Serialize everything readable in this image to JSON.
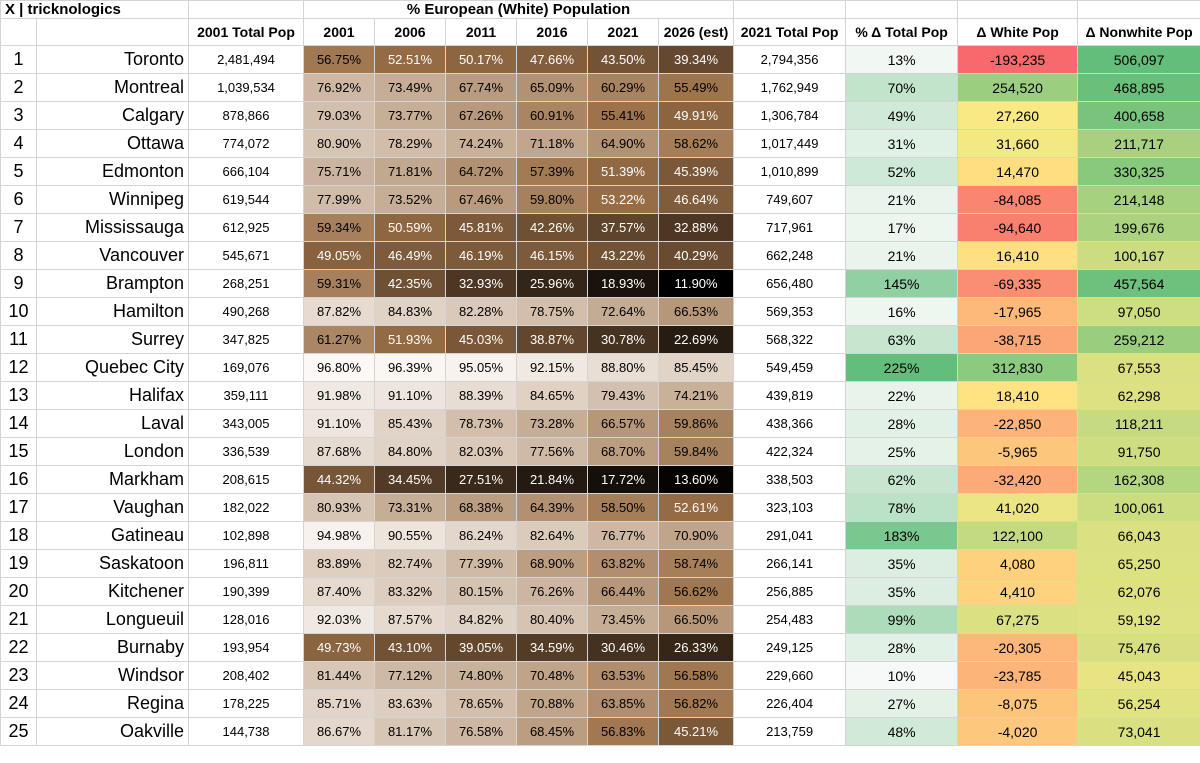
{
  "header": {
    "attribution": "X | tricknologics",
    "group_title": "% European (White) Population",
    "columns": [
      "",
      "",
      "2001 Total Pop",
      "2001",
      "2006",
      "2011",
      "2016",
      "2021",
      "2026 (est)",
      "2021 Total Pop",
      "% Δ Total Pop",
      "Δ White Pop",
      "Δ Nonwhite Pop"
    ]
  },
  "colors": {
    "white_pct_high": "#fbf8f5",
    "white_pct_mid": "#9b7048",
    "white_pct_low": "#000000",
    "total_change_low": "#f6f9f7",
    "total_change_high": "#63be7b",
    "delta_red": "#f8696b",
    "delta_yellow": "#ffeb84",
    "delta_green": "#63be7b"
  },
  "chart_data": {
    "type": "table",
    "title": "% European (White) Population",
    "columns": [
      "#",
      "City",
      "2001 Total Pop",
      "2001",
      "2006",
      "2011",
      "2016",
      "2021",
      "2026 (est)",
      "2021 Total Pop",
      "% Δ Total Pop",
      "Δ White Pop",
      "Δ Nonwhite Pop"
    ],
    "rows": [
      {
        "rank": "1",
        "city": "Toronto",
        "pop2001": "2,481,494",
        "p2001": "56.75%",
        "p2006": "52.51%",
        "p2011": "50.17%",
        "p2016": "47.66%",
        "p2021": "43.50%",
        "p2026": "39.34%",
        "pop2021": "2,794,356",
        "chg": "13%",
        "dwhite": "-193,235",
        "dnonwhite": "506,097"
      },
      {
        "rank": "2",
        "city": "Montreal",
        "pop2001": "1,039,534",
        "p2001": "76.92%",
        "p2006": "73.49%",
        "p2011": "67.74%",
        "p2016": "65.09%",
        "p2021": "60.29%",
        "p2026": "55.49%",
        "pop2021": "1,762,949",
        "chg": "70%",
        "dwhite": "254,520",
        "dnonwhite": "468,895"
      },
      {
        "rank": "3",
        "city": "Calgary",
        "pop2001": "878,866",
        "p2001": "79.03%",
        "p2006": "73.77%",
        "p2011": "67.26%",
        "p2016": "60.91%",
        "p2021": "55.41%",
        "p2026": "49.91%",
        "pop2021": "1,306,784",
        "chg": "49%",
        "dwhite": "27,260",
        "dnonwhite": "400,658"
      },
      {
        "rank": "4",
        "city": "Ottawa",
        "pop2001": "774,072",
        "p2001": "80.90%",
        "p2006": "78.29%",
        "p2011": "74.24%",
        "p2016": "71.18%",
        "p2021": "64.90%",
        "p2026": "58.62%",
        "pop2021": "1,017,449",
        "chg": "31%",
        "dwhite": "31,660",
        "dnonwhite": "211,717"
      },
      {
        "rank": "5",
        "city": "Edmonton",
        "pop2001": "666,104",
        "p2001": "75.71%",
        "p2006": "71.81%",
        "p2011": "64.72%",
        "p2016": "57.39%",
        "p2021": "51.39%",
        "p2026": "45.39%",
        "pop2021": "1,010,899",
        "chg": "52%",
        "dwhite": "14,470",
        "dnonwhite": "330,325"
      },
      {
        "rank": "6",
        "city": "Winnipeg",
        "pop2001": "619,544",
        "p2001": "77.99%",
        "p2006": "73.52%",
        "p2011": "67.46%",
        "p2016": "59.80%",
        "p2021": "53.22%",
        "p2026": "46.64%",
        "pop2021": "749,607",
        "chg": "21%",
        "dwhite": "-84,085",
        "dnonwhite": "214,148"
      },
      {
        "rank": "7",
        "city": "Mississauga",
        "pop2001": "612,925",
        "p2001": "59.34%",
        "p2006": "50.59%",
        "p2011": "45.81%",
        "p2016": "42.26%",
        "p2021": "37.57%",
        "p2026": "32.88%",
        "pop2021": "717,961",
        "chg": "17%",
        "dwhite": "-94,640",
        "dnonwhite": "199,676"
      },
      {
        "rank": "8",
        "city": "Vancouver",
        "pop2001": "545,671",
        "p2001": "49.05%",
        "p2006": "46.49%",
        "p2011": "46.19%",
        "p2016": "46.15%",
        "p2021": "43.22%",
        "p2026": "40.29%",
        "pop2021": "662,248",
        "chg": "21%",
        "dwhite": "16,410",
        "dnonwhite": "100,167"
      },
      {
        "rank": "9",
        "city": "Brampton",
        "pop2001": "268,251",
        "p2001": "59.31%",
        "p2006": "42.35%",
        "p2011": "32.93%",
        "p2016": "25.96%",
        "p2021": "18.93%",
        "p2026": "11.90%",
        "pop2021": "656,480",
        "chg": "145%",
        "dwhite": "-69,335",
        "dnonwhite": "457,564"
      },
      {
        "rank": "10",
        "city": "Hamilton",
        "pop2001": "490,268",
        "p2001": "87.82%",
        "p2006": "84.83%",
        "p2011": "82.28%",
        "p2016": "78.75%",
        "p2021": "72.64%",
        "p2026": "66.53%",
        "pop2021": "569,353",
        "chg": "16%",
        "dwhite": "-17,965",
        "dnonwhite": "97,050"
      },
      {
        "rank": "11",
        "city": "Surrey",
        "pop2001": "347,825",
        "p2001": "61.27%",
        "p2006": "51.93%",
        "p2011": "45.03%",
        "p2016": "38.87%",
        "p2021": "30.78%",
        "p2026": "22.69%",
        "pop2021": "568,322",
        "chg": "63%",
        "dwhite": "-38,715",
        "dnonwhite": "259,212"
      },
      {
        "rank": "12",
        "city": "Quebec City",
        "pop2001": "169,076",
        "p2001": "96.80%",
        "p2006": "96.39%",
        "p2011": "95.05%",
        "p2016": "92.15%",
        "p2021": "88.80%",
        "p2026": "85.45%",
        "pop2021": "549,459",
        "chg": "225%",
        "dwhite": "312,830",
        "dnonwhite": "67,553"
      },
      {
        "rank": "13",
        "city": "Halifax",
        "pop2001": "359,111",
        "p2001": "91.98%",
        "p2006": "91.10%",
        "p2011": "88.39%",
        "p2016": "84.65%",
        "p2021": "79.43%",
        "p2026": "74.21%",
        "pop2021": "439,819",
        "chg": "22%",
        "dwhite": "18,410",
        "dnonwhite": "62,298"
      },
      {
        "rank": "14",
        "city": "Laval",
        "pop2001": "343,005",
        "p2001": "91.10%",
        "p2006": "85.43%",
        "p2011": "78.73%",
        "p2016": "73.28%",
        "p2021": "66.57%",
        "p2026": "59.86%",
        "pop2021": "438,366",
        "chg": "28%",
        "dwhite": "-22,850",
        "dnonwhite": "118,211"
      },
      {
        "rank": "15",
        "city": "London",
        "pop2001": "336,539",
        "p2001": "87.68%",
        "p2006": "84.80%",
        "p2011": "82.03%",
        "p2016": "77.56%",
        "p2021": "68.70%",
        "p2026": "59.84%",
        "pop2021": "422,324",
        "chg": "25%",
        "dwhite": "-5,965",
        "dnonwhite": "91,750"
      },
      {
        "rank": "16",
        "city": "Markham",
        "pop2001": "208,615",
        "p2001": "44.32%",
        "p2006": "34.45%",
        "p2011": "27.51%",
        "p2016": "21.84%",
        "p2021": "17.72%",
        "p2026": "13.60%",
        "pop2021": "338,503",
        "chg": "62%",
        "dwhite": "-32,420",
        "dnonwhite": "162,308"
      },
      {
        "rank": "17",
        "city": "Vaughan",
        "pop2001": "182,022",
        "p2001": "80.93%",
        "p2006": "73.31%",
        "p2011": "68.38%",
        "p2016": "64.39%",
        "p2021": "58.50%",
        "p2026": "52.61%",
        "pop2021": "323,103",
        "chg": "78%",
        "dwhite": "41,020",
        "dnonwhite": "100,061"
      },
      {
        "rank": "18",
        "city": "Gatineau",
        "pop2001": "102,898",
        "p2001": "94.98%",
        "p2006": "90.55%",
        "p2011": "86.24%",
        "p2016": "82.64%",
        "p2021": "76.77%",
        "p2026": "70.90%",
        "pop2021": "291,041",
        "chg": "183%",
        "dwhite": "122,100",
        "dnonwhite": "66,043"
      },
      {
        "rank": "19",
        "city": "Saskatoon",
        "pop2001": "196,811",
        "p2001": "83.89%",
        "p2006": "82.74%",
        "p2011": "77.39%",
        "p2016": "68.90%",
        "p2021": "63.82%",
        "p2026": "58.74%",
        "pop2021": "266,141",
        "chg": "35%",
        "dwhite": "4,080",
        "dnonwhite": "65,250"
      },
      {
        "rank": "20",
        "city": "Kitchener",
        "pop2001": "190,399",
        "p2001": "87.40%",
        "p2006": "83.32%",
        "p2011": "80.15%",
        "p2016": "76.26%",
        "p2021": "66.44%",
        "p2026": "56.62%",
        "pop2021": "256,885",
        "chg": "35%",
        "dwhite": "4,410",
        "dnonwhite": "62,076"
      },
      {
        "rank": "21",
        "city": "Longueuil",
        "pop2001": "128,016",
        "p2001": "92.03%",
        "p2006": "87.57%",
        "p2011": "84.82%",
        "p2016": "80.40%",
        "p2021": "73.45%",
        "p2026": "66.50%",
        "pop2021": "254,483",
        "chg": "99%",
        "dwhite": "67,275",
        "dnonwhite": "59,192"
      },
      {
        "rank": "22",
        "city": "Burnaby",
        "pop2001": "193,954",
        "p2001": "49.73%",
        "p2006": "43.10%",
        "p2011": "39.05%",
        "p2016": "34.59%",
        "p2021": "30.46%",
        "p2026": "26.33%",
        "pop2021": "249,125",
        "chg": "28%",
        "dwhite": "-20,305",
        "dnonwhite": "75,476"
      },
      {
        "rank": "23",
        "city": "Windsor",
        "pop2001": "208,402",
        "p2001": "81.44%",
        "p2006": "77.12%",
        "p2011": "74.80%",
        "p2016": "70.48%",
        "p2021": "63.53%",
        "p2026": "56.58%",
        "pop2021": "229,660",
        "chg": "10%",
        "dwhite": "-23,785",
        "dnonwhite": "45,043"
      },
      {
        "rank": "24",
        "city": "Regina",
        "pop2001": "178,225",
        "p2001": "85.71%",
        "p2006": "83.63%",
        "p2011": "78.65%",
        "p2016": "70.88%",
        "p2021": "63.85%",
        "p2026": "56.82%",
        "pop2021": "226,404",
        "chg": "27%",
        "dwhite": "-8,075",
        "dnonwhite": "56,254"
      },
      {
        "rank": "25",
        "city": "Oakville",
        "pop2001": "144,738",
        "p2001": "86.67%",
        "p2006": "81.17%",
        "p2011": "76.58%",
        "p2016": "68.45%",
        "p2021": "56.83%",
        "p2026": "45.21%",
        "pop2021": "213,759",
        "chg": "48%",
        "dwhite": "-4,020",
        "dnonwhite": "73,041"
      }
    ]
  }
}
